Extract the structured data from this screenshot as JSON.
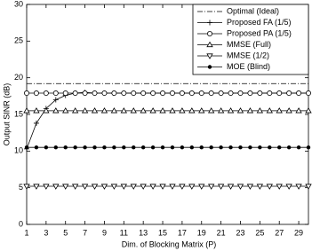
{
  "chart_data": {
    "type": "line",
    "x_label": "Dim. of Blocking Matrix (P)",
    "y_label": "Output SINR (dB)",
    "x": [
      1,
      2,
      3,
      4,
      5,
      6,
      7,
      8,
      9,
      10,
      11,
      12,
      13,
      14,
      15,
      16,
      17,
      18,
      19,
      20,
      21,
      22,
      23,
      24,
      25,
      26,
      27,
      28,
      29,
      30
    ],
    "xlim": [
      1,
      30
    ],
    "xticks": [
      1,
      3,
      5,
      7,
      9,
      11,
      13,
      15,
      17,
      19,
      21,
      23,
      25,
      27,
      29
    ],
    "ylim": [
      0,
      30
    ],
    "yticks": [
      0,
      5,
      10,
      15,
      20,
      25,
      30
    ],
    "legend": "upper right",
    "series": [
      {
        "name": "Optimal (Ideal)",
        "color": "#000000",
        "dash": "dashdot",
        "marker": "none",
        "values": [
          19.2,
          19.2,
          19.2,
          19.2,
          19.2,
          19.2,
          19.2,
          19.2,
          19.2,
          19.2,
          19.2,
          19.2,
          19.2,
          19.2,
          19.2,
          19.2,
          19.2,
          19.2,
          19.2,
          19.2,
          19.2,
          19.2,
          19.2,
          19.2,
          19.2,
          19.2,
          19.2,
          19.2,
          19.2,
          19.2
        ]
      },
      {
        "name": "Proposed FA (1/5)",
        "color": "#000000",
        "dash": "solid",
        "marker": "plus",
        "values": [
          10.3,
          13.8,
          15.8,
          17.0,
          17.6,
          17.9,
          18.0,
          17.9,
          17.9,
          17.9,
          17.9,
          17.9,
          17.9,
          17.9,
          17.9,
          17.9,
          17.9,
          17.9,
          17.9,
          17.9,
          17.9,
          17.9,
          17.9,
          17.9,
          17.9,
          17.9,
          17.9,
          17.9,
          17.9,
          17.9
        ]
      },
      {
        "name": "Proposed PA (1/5)",
        "color": "#000000",
        "dash": "solid",
        "marker": "circle",
        "values": [
          17.9,
          17.9,
          17.9,
          17.9,
          17.9,
          17.9,
          17.9,
          17.9,
          17.9,
          17.9,
          17.9,
          17.9,
          17.9,
          17.9,
          17.9,
          17.9,
          17.9,
          17.9,
          17.9,
          17.9,
          17.9,
          17.9,
          17.9,
          17.9,
          17.9,
          17.9,
          17.9,
          17.9,
          17.9,
          17.9
        ]
      },
      {
        "name": "MMSE (Full)",
        "color": "#000000",
        "dash": "solid",
        "marker": "triangle-up",
        "values": [
          15.5,
          15.5,
          15.5,
          15.5,
          15.5,
          15.5,
          15.5,
          15.5,
          15.5,
          15.5,
          15.5,
          15.5,
          15.5,
          15.5,
          15.5,
          15.5,
          15.5,
          15.5,
          15.5,
          15.5,
          15.5,
          15.5,
          15.5,
          15.5,
          15.5,
          15.5,
          15.5,
          15.5,
          15.5,
          15.5
        ]
      },
      {
        "name": "MMSE (1/2)",
        "color": "#000000",
        "dash": "solid",
        "marker": "triangle-down",
        "values": [
          5.2,
          5.2,
          5.2,
          5.2,
          5.2,
          5.2,
          5.2,
          5.2,
          5.2,
          5.2,
          5.2,
          5.2,
          5.2,
          5.2,
          5.2,
          5.2,
          5.2,
          5.2,
          5.2,
          5.2,
          5.2,
          5.2,
          5.2,
          5.2,
          5.2,
          5.2,
          5.2,
          5.2,
          5.2,
          5.2
        ]
      },
      {
        "name": "MOE (Blind)",
        "color": "#000000",
        "dash": "solid",
        "marker": "dot",
        "values": [
          10.5,
          10.5,
          10.5,
          10.5,
          10.5,
          10.5,
          10.5,
          10.5,
          10.5,
          10.5,
          10.5,
          10.5,
          10.5,
          10.5,
          10.5,
          10.5,
          10.5,
          10.5,
          10.5,
          10.5,
          10.5,
          10.5,
          10.5,
          10.5,
          10.5,
          10.5,
          10.5,
          10.5,
          10.5,
          10.5
        ]
      }
    ]
  }
}
